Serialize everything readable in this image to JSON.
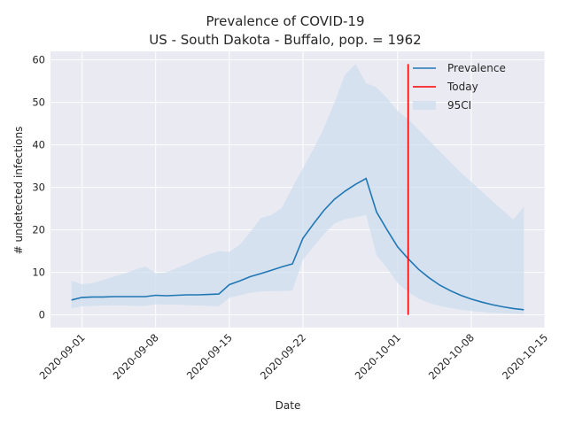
{
  "chart_data": {
    "type": "line",
    "title": "Prevalence of COVID-19",
    "subtitle": "US - South Dakota - Buffalo, pop. = 1962",
    "xlabel": "Date",
    "ylabel": "# undetected infections",
    "xlim": [
      "2020-08-29",
      "2020-10-15"
    ],
    "ylim": [
      -3,
      62
    ],
    "x_ticks": [
      "2020-09-01",
      "2020-09-08",
      "2020-09-15",
      "2020-09-22",
      "2020-10-01",
      "2020-10-08",
      "2020-10-15"
    ],
    "y_ticks": [
      0,
      10,
      20,
      30,
      40,
      50,
      60
    ],
    "grid": true,
    "legend_position": "top-right",
    "colors": {
      "prevalence": "#1f77b4",
      "today": "#ff0000",
      "ci_fill": "#cfdeed",
      "plot_bg": "#eaeaf2",
      "grid": "#ffffff"
    },
    "legend": [
      "Prevalence",
      "Today",
      "95CI"
    ],
    "today": {
      "name": "Today",
      "x": "2020-10-02",
      "y_range": [
        0,
        59
      ]
    },
    "series": [
      {
        "name": "Prevalence",
        "x": [
          "2020-08-31",
          "2020-09-01",
          "2020-09-02",
          "2020-09-03",
          "2020-09-04",
          "2020-09-05",
          "2020-09-06",
          "2020-09-07",
          "2020-09-08",
          "2020-09-09",
          "2020-09-10",
          "2020-09-11",
          "2020-09-12",
          "2020-09-13",
          "2020-09-14",
          "2020-09-15",
          "2020-09-16",
          "2020-09-17",
          "2020-09-18",
          "2020-09-19",
          "2020-09-20",
          "2020-09-21",
          "2020-09-22",
          "2020-09-23",
          "2020-09-24",
          "2020-09-25",
          "2020-09-26",
          "2020-09-27",
          "2020-09-28",
          "2020-09-29",
          "2020-09-30",
          "2020-10-01",
          "2020-10-02",
          "2020-10-03",
          "2020-10-04",
          "2020-10-05",
          "2020-10-06",
          "2020-10-07",
          "2020-10-08",
          "2020-10-09",
          "2020-10-10",
          "2020-10-11",
          "2020-10-12",
          "2020-10-13"
        ],
        "values": [
          3.5,
          4.1,
          4.2,
          4.2,
          4.3,
          4.3,
          4.3,
          4.3,
          4.6,
          4.5,
          4.6,
          4.7,
          4.7,
          4.8,
          4.9,
          7.1,
          8.0,
          9.0,
          9.7,
          10.5,
          11.3,
          12.0,
          18.0,
          21.4,
          24.6,
          27.2,
          29.1,
          30.7,
          32.1,
          24.2,
          20.0,
          16.0,
          13.2,
          10.7,
          8.7,
          7.0,
          5.7,
          4.6,
          3.7,
          3.0,
          2.4,
          1.9,
          1.5,
          1.2
        ]
      }
    ],
    "ci": {
      "name": "95CI",
      "upper": [
        8.0,
        7.2,
        7.5,
        8.2,
        9.0,
        9.7,
        10.6,
        11.4,
        9.8,
        10.0,
        11.0,
        12.0,
        13.2,
        14.2,
        15.0,
        14.8,
        16.5,
        19.5,
        22.8,
        23.5,
        25.2,
        30.0,
        34.5,
        39.0,
        44.0,
        50.0,
        56.5,
        59.0,
        54.5,
        53.5,
        51.0,
        48.0,
        46.0,
        43.5,
        41.0,
        38.5,
        36.0,
        33.5,
        31.3,
        29.0,
        26.8,
        24.6,
        22.4,
        25.5
      ],
      "lower": [
        1.5,
        2.0,
        2.1,
        2.2,
        2.2,
        2.2,
        2.1,
        2.1,
        2.5,
        2.4,
        2.4,
        2.3,
        2.2,
        2.1,
        2.0,
        4.0,
        4.6,
        5.2,
        5.5,
        5.6,
        5.6,
        5.7,
        13.0,
        16.0,
        19.0,
        21.5,
        22.5,
        23.0,
        23.5,
        14.0,
        11.0,
        7.5,
        5.4,
        3.8,
        2.8,
        2.1,
        1.6,
        1.2,
        0.9,
        0.7,
        0.5,
        0.4,
        0.3,
        0.2
      ]
    }
  }
}
